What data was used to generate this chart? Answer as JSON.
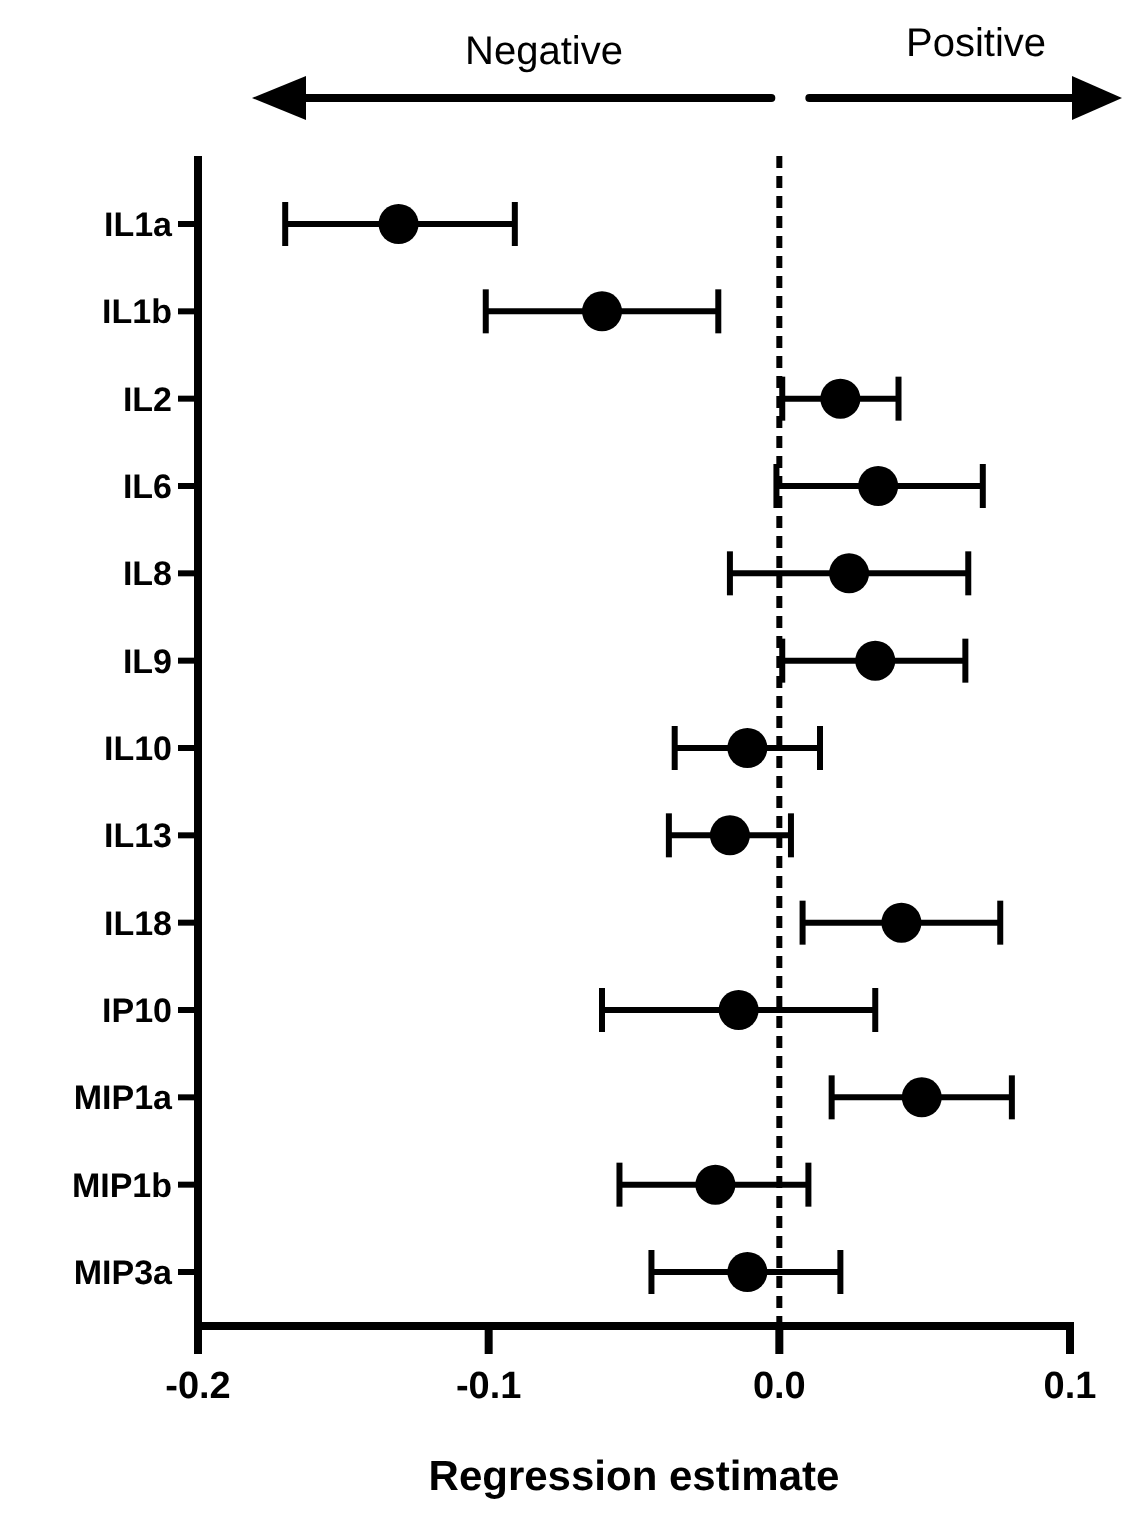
{
  "chart_data": {
    "type": "scatter",
    "orientation": "horizontal",
    "xlabel": "Regression estimate",
    "annotations": [
      "Negative",
      "Positive"
    ],
    "categories": [
      "IL1a",
      "IL1b",
      "IL2",
      "IL6",
      "IL8",
      "IL9",
      "IL10",
      "IL13",
      "IL18",
      "IP10",
      "MIP1a",
      "MIP1b",
      "MIP3a"
    ],
    "values": [
      -0.131,
      -0.061,
      0.021,
      0.034,
      0.024,
      0.033,
      -0.011,
      -0.017,
      0.042,
      -0.014,
      0.049,
      -0.022,
      -0.011
    ],
    "errors": [
      [
        -0.17,
        -0.091
      ],
      [
        -0.101,
        -0.021
      ],
      [
        0.001,
        0.041
      ],
      [
        -0.001,
        0.07
      ],
      [
        -0.017,
        0.065
      ],
      [
        0.001,
        0.064
      ],
      [
        -0.036,
        0.014
      ],
      [
        -0.038,
        0.004
      ],
      [
        0.008,
        0.076
      ],
      [
        -0.061,
        0.033
      ],
      [
        0.018,
        0.08
      ],
      [
        -0.055,
        0.01
      ],
      [
        -0.044,
        0.021
      ]
    ],
    "color": "#000000",
    "marker": "circle",
    "xlim": [
      -0.2,
      0.1
    ],
    "xticks": [
      -0.2,
      -0.1,
      {
        "value": 0,
        "label": "0.0"
      },
      0.1
    ],
    "ref_lines": [
      {
        "axis": "x",
        "value": 0,
        "line_style": "dashed"
      }
    ],
    "grid": false
  }
}
